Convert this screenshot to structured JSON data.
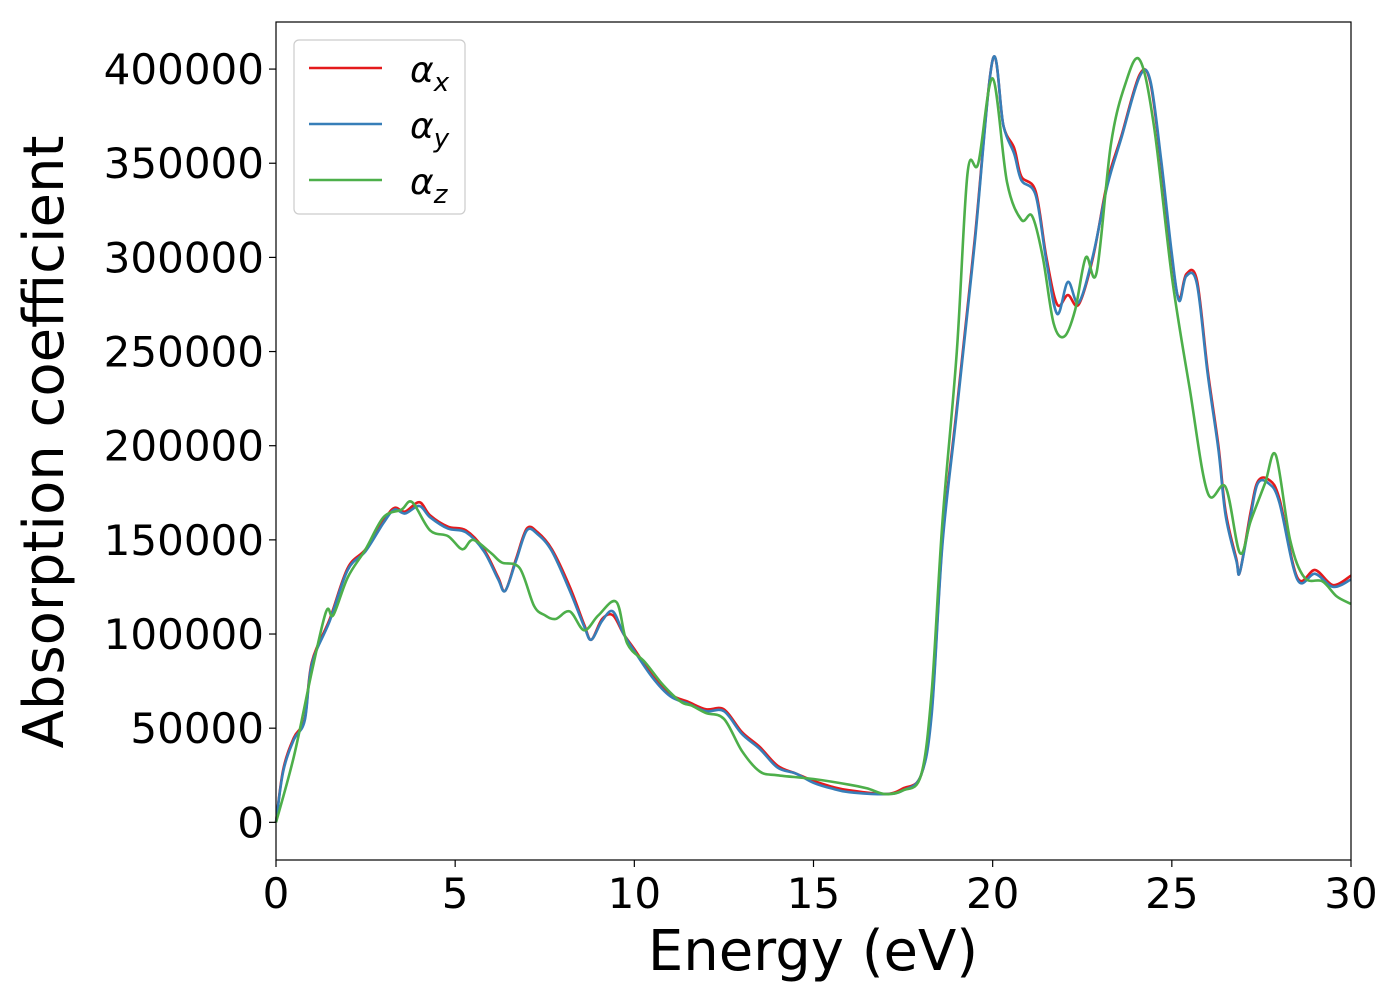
{
  "chart_data": {
    "type": "line",
    "title": "",
    "xlabel": "Energy (eV)",
    "ylabel": "Absorption coefficient",
    "xlim": [
      0,
      30
    ],
    "ylim": [
      -20000,
      425000
    ],
    "xticks": [
      0,
      5,
      10,
      15,
      20,
      25,
      30
    ],
    "xtick_labels": [
      "0",
      "5",
      "10",
      "15",
      "20",
      "25",
      "30"
    ],
    "yticks": [
      0,
      50000,
      100000,
      150000,
      200000,
      250000,
      300000,
      350000,
      400000
    ],
    "ytick_labels": [
      "0",
      "50000",
      "100000",
      "150000",
      "200000",
      "250000",
      "300000",
      "350000",
      "400000"
    ],
    "grid": false,
    "legend_placement": "top-left",
    "series": [
      {
        "name": "α_x",
        "label_base": "α",
        "label_sub": "x",
        "color": "#e41a1c",
        "x": [
          0,
          0.2,
          0.5,
          0.8,
          1.0,
          1.5,
          2.0,
          2.5,
          3.0,
          3.3,
          3.6,
          4.0,
          4.3,
          4.8,
          5.3,
          5.8,
          6.2,
          6.4,
          6.7,
          7.0,
          7.3,
          7.7,
          8.2,
          8.6,
          8.8,
          9.1,
          9.4,
          9.7,
          10.0,
          10.5,
          11.0,
          11.5,
          12.0,
          12.5,
          13.0,
          13.5,
          14.0,
          14.5,
          15.0,
          15.5,
          16.0,
          17.0,
          17.5,
          18.0,
          18.3,
          18.6,
          19.0,
          19.5,
          20.0,
          20.3,
          20.6,
          20.8,
          21.2,
          21.5,
          21.8,
          22.1,
          22.4,
          22.8,
          23.2,
          23.6,
          24.1,
          24.4,
          24.7,
          25.0,
          25.2,
          25.4,
          25.7,
          26.0,
          26.3,
          26.5,
          26.8,
          26.9,
          27.2,
          27.4,
          27.7,
          28.0,
          28.5,
          29.0,
          29.5,
          30.0
        ],
        "y": [
          0,
          28000,
          45000,
          55000,
          85000,
          108000,
          135000,
          145000,
          160000,
          167000,
          165000,
          170000,
          163000,
          157000,
          155000,
          145000,
          130000,
          123000,
          140000,
          156000,
          154000,
          145000,
          125000,
          105000,
          97000,
          108000,
          110000,
          100000,
          92000,
          78000,
          68000,
          64000,
          60000,
          60000,
          48000,
          40000,
          30000,
          26000,
          22000,
          19000,
          17000,
          15000,
          18000,
          25000,
          60000,
          150000,
          220000,
          310000,
          405000,
          370000,
          358000,
          343000,
          335000,
          300000,
          275000,
          280000,
          275000,
          300000,
          340000,
          365000,
          397000,
          393000,
          350000,
          300000,
          278000,
          291000,
          288000,
          240000,
          200000,
          165000,
          140000,
          133000,
          165000,
          181000,
          182000,
          172000,
          130000,
          134000,
          126000,
          131000
        ]
      },
      {
        "name": "α_y",
        "label_base": "α",
        "label_sub": "y",
        "color": "#377eb8",
        "x": [
          0,
          0.2,
          0.5,
          0.8,
          1.0,
          1.5,
          2.0,
          2.5,
          3.0,
          3.3,
          3.6,
          4.0,
          4.3,
          4.8,
          5.3,
          5.8,
          6.2,
          6.4,
          6.7,
          7.0,
          7.3,
          7.7,
          8.2,
          8.6,
          8.8,
          9.1,
          9.4,
          9.7,
          10.0,
          10.5,
          11.0,
          11.5,
          12.0,
          12.5,
          13.0,
          13.5,
          14.0,
          14.5,
          15.0,
          15.5,
          16.0,
          17.0,
          17.5,
          18.0,
          18.3,
          18.6,
          19.0,
          19.5,
          20.0,
          20.3,
          20.6,
          20.8,
          21.2,
          21.5,
          21.8,
          22.1,
          22.4,
          22.8,
          23.2,
          23.6,
          24.1,
          24.4,
          24.7,
          25.0,
          25.2,
          25.4,
          25.7,
          26.0,
          26.3,
          26.5,
          26.8,
          26.9,
          27.2,
          27.4,
          27.7,
          28.0,
          28.5,
          29.0,
          29.5,
          30.0
        ],
        "y": [
          0,
          27000,
          44000,
          54000,
          84000,
          107000,
          134000,
          144000,
          159000,
          166000,
          164000,
          168000,
          162000,
          156000,
          154000,
          144000,
          129000,
          123000,
          139000,
          155000,
          153000,
          144000,
          123000,
          104000,
          97000,
          107000,
          112000,
          100000,
          91000,
          77000,
          67000,
          63000,
          59000,
          59000,
          47000,
          39000,
          29000,
          26000,
          21000,
          18000,
          16000,
          15000,
          17000,
          25000,
          58000,
          148000,
          218000,
          308000,
          405000,
          370000,
          355000,
          341000,
          333000,
          298000,
          270000,
          287000,
          276000,
          301000,
          338000,
          364000,
          396000,
          394000,
          352000,
          302000,
          277000,
          290000,
          286000,
          238000,
          198000,
          163000,
          139000,
          133000,
          163000,
          180000,
          180000,
          170000,
          129000,
          132000,
          125000,
          129000
        ]
      },
      {
        "name": "α_z",
        "label_base": "α",
        "label_sub": "z",
        "color": "#4daf4a",
        "x": [
          0,
          0.5,
          1.0,
          1.4,
          1.6,
          2.0,
          2.5,
          3.0,
          3.5,
          3.8,
          4.3,
          4.8,
          5.2,
          5.5,
          6.0,
          6.3,
          6.8,
          7.2,
          7.5,
          7.8,
          8.2,
          8.6,
          9.0,
          9.5,
          9.8,
          10.3,
          10.8,
          11.3,
          11.6,
          12.0,
          12.5,
          13.0,
          13.5,
          14.0,
          15.0,
          16.0,
          16.5,
          17.0,
          17.5,
          18.0,
          18.3,
          18.6,
          19.0,
          19.3,
          19.6,
          20.0,
          20.4,
          20.8,
          21.1,
          21.4,
          21.7,
          22.0,
          22.3,
          22.6,
          22.9,
          23.3,
          23.7,
          24.1,
          24.5,
          25.0,
          25.5,
          26.0,
          26.5,
          26.9,
          27.2,
          27.6,
          27.9,
          28.3,
          28.7,
          29.2,
          29.6,
          30.0
        ],
        "y": [
          0,
          35000,
          80000,
          112000,
          110000,
          130000,
          145000,
          162000,
          166000,
          170000,
          155000,
          152000,
          145000,
          150000,
          143000,
          138000,
          135000,
          115000,
          110000,
          108000,
          112000,
          102000,
          110000,
          117000,
          95000,
          85000,
          73000,
          64000,
          62000,
          58000,
          55000,
          38000,
          27000,
          25000,
          23000,
          20000,
          18000,
          15000,
          17000,
          25000,
          70000,
          160000,
          250000,
          345000,
          350000,
          395000,
          340000,
          320000,
          322000,
          300000,
          265000,
          258000,
          272000,
          300000,
          292000,
          360000,
          392000,
          405000,
          370000,
          290000,
          230000,
          175000,
          178000,
          143000,
          160000,
          180000,
          195000,
          150000,
          130000,
          128000,
          120000,
          116000
        ]
      }
    ]
  }
}
